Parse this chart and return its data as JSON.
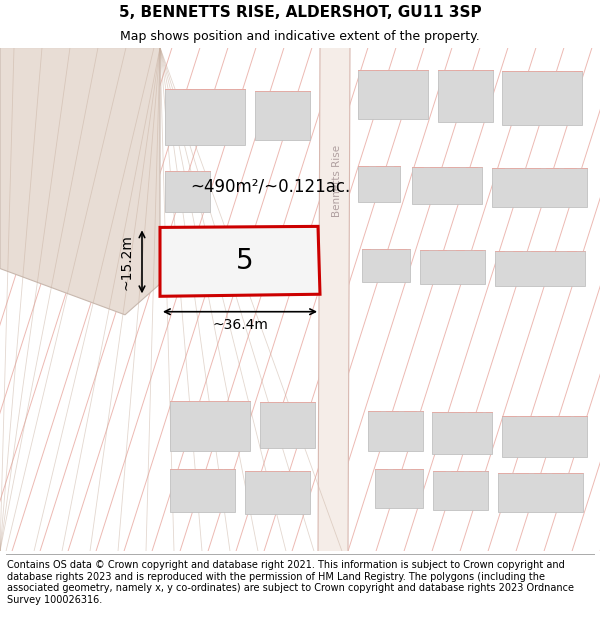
{
  "title": "5, BENNETTS RISE, ALDERSHOT, GU11 3SP",
  "subtitle": "Map shows position and indicative extent of the property.",
  "footer": "Contains OS data © Crown copyright and database right 2021. This information is subject to Crown copyright and database rights 2023 and is reproduced with the permission of HM Land Registry. The polygons (including the associated geometry, namely x, y co-ordinates) are subject to Crown copyright and database rights 2023 Ordnance Survey 100026316.",
  "bg_color": "#ffffff",
  "highlight_fill": "#f5f5f5",
  "highlight_outline": "#cc0000",
  "highlight_lw": 2.0,
  "street_label": "Bennetts Rise",
  "area_label": "~490m²/~0.121ac.",
  "number_label": "5",
  "width_label": "~36.4m",
  "height_label": "~15.2m",
  "title_fontsize": 11,
  "subtitle_fontsize": 9,
  "footer_fontsize": 7.0,
  "line_color": "#e8a8a0",
  "building_fill": "#d8d8d8",
  "building_edge": "#c0c0c0",
  "road_fill": "#f5ede8",
  "road_edge": "#d8b8b0",
  "left_fill": "#e8ddd5",
  "left_edge": "#c8b8ae"
}
